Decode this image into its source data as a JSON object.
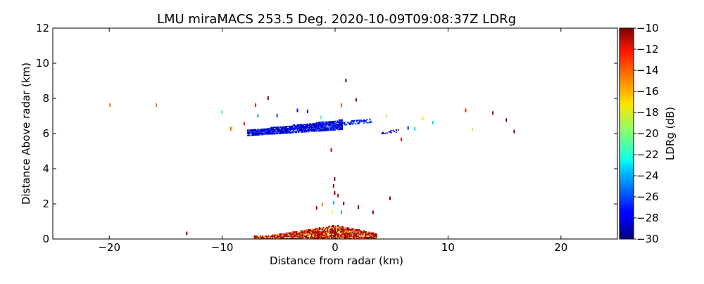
{
  "chart_data": {
    "type": "heatmap",
    "title": "LMU miraMACS 253.5 Deg. 2020-10-09T09:08:37Z  LDRg",
    "xlabel": "Distance from radar (km)",
    "ylabel": "Distance Above radar  (km)",
    "xlim": [
      -25,
      25
    ],
    "ylim": [
      0,
      12
    ],
    "xticks": [
      -20,
      -10,
      0,
      10,
      20
    ],
    "yticks": [
      0,
      2,
      4,
      6,
      8,
      10,
      12
    ],
    "grid": false,
    "colorbar": {
      "label": "LDRg (dB)",
      "colormap": "jet",
      "range": [
        -30,
        -10
      ],
      "ticks": [
        -10,
        -12,
        -14,
        -16,
        -18,
        -20,
        -22,
        -24,
        -26,
        -28,
        -30
      ]
    },
    "echo_regions": [
      {
        "name": "ice-cloud-layer",
        "x": [
          -7.8,
          0.6
        ],
        "y_base": [
          5.85,
          6.2
        ],
        "y_top": [
          6.15,
          6.75
        ],
        "ldr": [
          -30,
          -26
        ],
        "density": 0.85
      },
      {
        "name": "ice-cloud-tail",
        "x": [
          0.6,
          3.2
        ],
        "y_base": [
          6.45,
          6.6
        ],
        "y_top": [
          6.6,
          6.85
        ],
        "ldr": [
          -29,
          -25
        ],
        "density": 0.45
      },
      {
        "name": "ice-cloud-patch-east",
        "x": [
          4.0,
          5.6
        ],
        "y_base": [
          5.95,
          6.05
        ],
        "y_top": [
          6.05,
          6.2
        ],
        "ldr": [
          -30,
          -27
        ],
        "density": 0.4
      },
      {
        "name": "low-level-precip",
        "x": [
          -7.2,
          3.6
        ],
        "y_base": [
          0,
          0
        ],
        "y_top": [
          0.15,
          0.75
        ],
        "ldr": [
          -20,
          -10
        ],
        "density": 0.8,
        "peak_x": 0.0
      }
    ],
    "isolated_echoes": [
      {
        "x": -20.0,
        "y": 7.6,
        "ldr": -15
      },
      {
        "x": -15.9,
        "y": 7.6,
        "ldr": -15
      },
      {
        "x": -13.2,
        "y": 0.3,
        "ldr": -10
      },
      {
        "x": -10.1,
        "y": 7.2,
        "ldr": -21
      },
      {
        "x": -9.3,
        "y": 6.25,
        "ldr": -14
      },
      {
        "x": -9.2,
        "y": 6.3,
        "ldr": -19
      },
      {
        "x": -8.1,
        "y": 6.55,
        "ldr": -13
      },
      {
        "x": -7.1,
        "y": 7.6,
        "ldr": -13
      },
      {
        "x": -6.9,
        "y": 7.0,
        "ldr": -24
      },
      {
        "x": -6.0,
        "y": 8.0,
        "ldr": -10
      },
      {
        "x": -5.2,
        "y": 7.0,
        "ldr": -26
      },
      {
        "x": -3.4,
        "y": 7.3,
        "ldr": -28
      },
      {
        "x": -2.5,
        "y": 7.25,
        "ldr": -28
      },
      {
        "x": -1.3,
        "y": 6.9,
        "ldr": -21
      },
      {
        "x": -0.4,
        "y": 5.05,
        "ldr": -11
      },
      {
        "x": 0.5,
        "y": 7.6,
        "ldr": -14
      },
      {
        "x": 0.9,
        "y": 9.0,
        "ldr": -10
      },
      {
        "x": 1.8,
        "y": 7.9,
        "ldr": -10
      },
      {
        "x": 4.5,
        "y": 7.0,
        "ldr": -19
      },
      {
        "x": 5.8,
        "y": 5.65,
        "ldr": -12
      },
      {
        "x": 6.4,
        "y": 6.3,
        "ldr": -27
      },
      {
        "x": 7.0,
        "y": 6.25,
        "ldr": -23
      },
      {
        "x": 7.7,
        "y": 6.85,
        "ldr": -17
      },
      {
        "x": 8.6,
        "y": 6.6,
        "ldr": -23
      },
      {
        "x": 11.5,
        "y": 7.3,
        "ldr": -13
      },
      {
        "x": 12.1,
        "y": 6.2,
        "ldr": -19
      },
      {
        "x": 13.9,
        "y": 7.15,
        "ldr": -11
      },
      {
        "x": 15.1,
        "y": 6.75,
        "ldr": -10
      },
      {
        "x": 15.8,
        "y": 6.1,
        "ldr": -10
      },
      {
        "x": -0.1,
        "y": 3.4,
        "ldr": -10
      },
      {
        "x": -0.2,
        "y": 3.0,
        "ldr": -10
      },
      {
        "x": -0.1,
        "y": 2.6,
        "ldr": -10
      },
      {
        "x": 0.2,
        "y": 2.45,
        "ldr": -11
      },
      {
        "x": -0.2,
        "y": 2.05,
        "ldr": -24
      },
      {
        "x": 0.7,
        "y": 2.0,
        "ldr": -10
      },
      {
        "x": 2.0,
        "y": 1.8,
        "ldr": -10
      },
      {
        "x": 4.8,
        "y": 2.3,
        "ldr": -10
      },
      {
        "x": -1.7,
        "y": 1.75,
        "ldr": -10
      },
      {
        "x": -1.2,
        "y": 1.95,
        "ldr": -15
      },
      {
        "x": 3.3,
        "y": 1.5,
        "ldr": -10
      },
      {
        "x": -0.3,
        "y": 1.5,
        "ldr": -18
      },
      {
        "x": 0.5,
        "y": 1.5,
        "ldr": -24
      }
    ]
  }
}
